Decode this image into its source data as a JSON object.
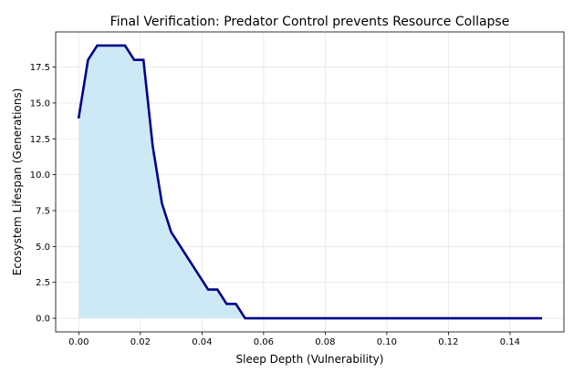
{
  "chart_data": {
    "type": "area",
    "title": "Final Verification: Predator Control prevents Resource Collapse",
    "xlabel": "Sleep Depth (Vulnerability)",
    "ylabel": "Ecosystem Lifespan (Generations)",
    "xlim": [
      -0.0075,
      0.1575
    ],
    "ylim": [
      -0.95,
      19.95
    ],
    "xticks": [
      0.0,
      0.02,
      0.04,
      0.06,
      0.08,
      0.1,
      0.12,
      0.14
    ],
    "xtick_labels": [
      "0.00",
      "0.02",
      "0.04",
      "0.06",
      "0.08",
      "0.10",
      "0.12",
      "0.14"
    ],
    "yticks": [
      0.0,
      2.5,
      5.0,
      7.5,
      10.0,
      12.5,
      15.0,
      17.5
    ],
    "ytick_labels": [
      "0.0",
      "2.5",
      "5.0",
      "7.5",
      "10.0",
      "12.5",
      "15.0",
      "17.5"
    ],
    "grid": true,
    "series": [
      {
        "line_color": "#00008b",
        "fill_color": "#cde9f6",
        "x": [
          0.0,
          0.003,
          0.006,
          0.009,
          0.012,
          0.015,
          0.018,
          0.021,
          0.024,
          0.027,
          0.03,
          0.033,
          0.036,
          0.039,
          0.042,
          0.045,
          0.048,
          0.051,
          0.054,
          0.057,
          0.06,
          0.07,
          0.08,
          0.09,
          0.1,
          0.11,
          0.12,
          0.13,
          0.14,
          0.15
        ],
        "y": [
          14,
          18,
          19,
          19,
          19,
          19,
          18,
          18,
          12,
          8,
          6,
          5,
          4,
          3,
          2,
          2,
          1,
          1,
          0,
          0,
          0,
          0,
          0,
          0,
          0,
          0,
          0,
          0,
          0,
          0
        ]
      }
    ]
  }
}
